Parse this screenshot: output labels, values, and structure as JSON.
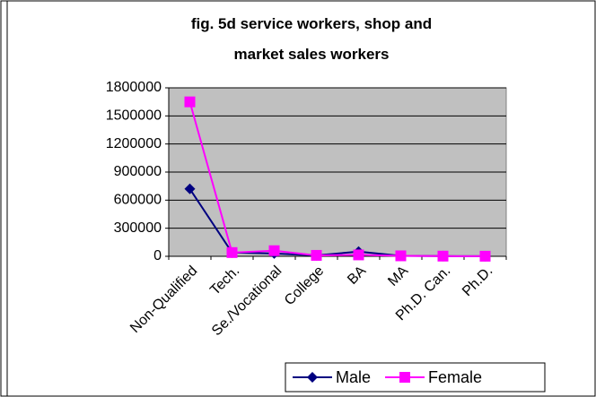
{
  "chart_data": {
    "type": "line",
    "title": "fig. 5d service workers, shop and market sales workers",
    "categories": [
      "Non-Qualified",
      "Tech.",
      "Se./Vocational",
      "College",
      "BA",
      "MA",
      "Ph.D. Can.",
      "Ph.D."
    ],
    "series": [
      {
        "name": "Male",
        "color": "#000080",
        "marker": "diamond",
        "values": [
          720000,
          40000,
          30000,
          10000,
          50000,
          5000,
          2000,
          1000
        ]
      },
      {
        "name": "Female",
        "color": "#ff00ff",
        "marker": "square",
        "values": [
          1650000,
          40000,
          60000,
          10000,
          15000,
          5000,
          2000,
          1000
        ]
      }
    ],
    "ylim": [
      0,
      1800000
    ],
    "yticks": [
      0,
      300000,
      600000,
      900000,
      1200000,
      1500000,
      1800000
    ],
    "grid": true,
    "legend": "bottom-right"
  }
}
